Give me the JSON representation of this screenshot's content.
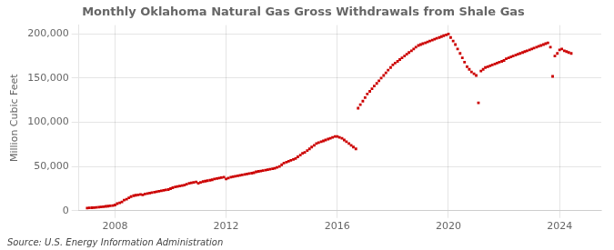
{
  "chart_data": {
    "type": "scatter",
    "title": "Monthly Oklahoma Natural Gas Gross Withdrawals from Shale Gas",
    "y_label": "Million Cubic Feet",
    "annotation": "Source: U.S. Energy Information Administration",
    "color": "#cc0000",
    "marker": "square",
    "grid": true,
    "xlim": [
      2006.7,
      2025.5
    ],
    "xticks": [
      2008,
      2012,
      2016,
      2020,
      2024
    ],
    "ylim": [
      0,
      210000
    ],
    "yticks": [
      0,
      {
        "value": 50000,
        "label": "50,000"
      },
      {
        "value": 100000,
        "label": "100,000"
      },
      {
        "value": 150000,
        "label": "150,000"
      },
      {
        "value": 200000,
        "label": "200,000"
      }
    ],
    "x": [
      2007.0,
      2007.08,
      2007.17,
      2007.25,
      2007.33,
      2007.42,
      2007.5,
      2007.58,
      2007.67,
      2007.75,
      2007.83,
      2007.92,
      2008.0,
      2008.08,
      2008.17,
      2008.25,
      2008.33,
      2008.42,
      2008.5,
      2008.58,
      2008.67,
      2008.75,
      2008.83,
      2008.92,
      2009.0,
      2009.08,
      2009.17,
      2009.25,
      2009.33,
      2009.42,
      2009.5,
      2009.58,
      2009.67,
      2009.75,
      2009.83,
      2009.92,
      2010.0,
      2010.08,
      2010.17,
      2010.25,
      2010.33,
      2010.42,
      2010.5,
      2010.58,
      2010.67,
      2010.75,
      2010.83,
      2010.92,
      2011.0,
      2011.08,
      2011.17,
      2011.25,
      2011.33,
      2011.42,
      2011.5,
      2011.58,
      2011.67,
      2011.75,
      2011.83,
      2011.92,
      2012.0,
      2012.08,
      2012.17,
      2012.25,
      2012.33,
      2012.42,
      2012.5,
      2012.58,
      2012.67,
      2012.75,
      2012.83,
      2012.92,
      2013.0,
      2013.08,
      2013.17,
      2013.25,
      2013.33,
      2013.42,
      2013.5,
      2013.58,
      2013.67,
      2013.75,
      2013.83,
      2013.92,
      2014.0,
      2014.08,
      2014.17,
      2014.25,
      2014.33,
      2014.42,
      2014.5,
      2014.58,
      2014.67,
      2014.75,
      2014.83,
      2014.92,
      2015.0,
      2015.08,
      2015.17,
      2015.25,
      2015.33,
      2015.42,
      2015.5,
      2015.58,
      2015.67,
      2015.75,
      2015.83,
      2015.92,
      2016.0,
      2016.08,
      2016.17,
      2016.25,
      2016.33,
      2016.42,
      2016.5,
      2016.58,
      2016.67,
      2016.75,
      2016.83,
      2016.92,
      2017.0,
      2017.08,
      2017.17,
      2017.25,
      2017.33,
      2017.42,
      2017.5,
      2017.58,
      2017.67,
      2017.75,
      2017.83,
      2017.92,
      2018.0,
      2018.08,
      2018.17,
      2018.25,
      2018.33,
      2018.42,
      2018.5,
      2018.58,
      2018.67,
      2018.75,
      2018.83,
      2018.92,
      2019.0,
      2019.08,
      2019.17,
      2019.25,
      2019.33,
      2019.42,
      2019.5,
      2019.58,
      2019.67,
      2019.75,
      2019.83,
      2019.92,
      2020.0,
      2020.08,
      2020.17,
      2020.25,
      2020.33,
      2020.42,
      2020.5,
      2020.58,
      2020.67,
      2020.75,
      2020.83,
      2020.92,
      2021.0,
      2021.08,
      2021.17,
      2021.25,
      2021.33,
      2021.42,
      2021.5,
      2021.58,
      2021.67,
      2021.75,
      2021.83,
      2021.92,
      2022.0,
      2022.08,
      2022.17,
      2022.25,
      2022.33,
      2022.42,
      2022.5,
      2022.58,
      2022.67,
      2022.75,
      2022.83,
      2022.92,
      2023.0,
      2023.08,
      2023.17,
      2023.25,
      2023.33,
      2023.42,
      2023.5,
      2023.58,
      2023.67,
      2023.75,
      2023.83,
      2023.92,
      2024.0,
      2024.08,
      2024.17,
      2024.25,
      2024.33,
      2024.42
    ],
    "values": [
      3000,
      3200,
      3400,
      3600,
      3800,
      4000,
      4300,
      4600,
      4900,
      5200,
      5500,
      5800,
      6500,
      8000,
      9000,
      10000,
      12000,
      13000,
      14500,
      16000,
      17000,
      17500,
      18000,
      18500,
      18000,
      19000,
      19500,
      20000,
      20500,
      21000,
      21500,
      22000,
      22500,
      23000,
      23500,
      24000,
      25000,
      26000,
      27000,
      27500,
      28000,
      28500,
      29000,
      30000,
      31000,
      31500,
      32000,
      32500,
      31000,
      32000,
      33000,
      33500,
      34000,
      34500,
      35000,
      36000,
      36500,
      37000,
      37500,
      38000,
      36000,
      37000,
      38000,
      38500,
      39000,
      39500,
      40000,
      40500,
      41000,
      41500,
      42000,
      42500,
      43000,
      44000,
      44500,
      45000,
      45500,
      46000,
      46500,
      47000,
      47500,
      48000,
      49000,
      50000,
      52000,
      54000,
      55000,
      56000,
      57000,
      58000,
      59000,
      61000,
      63000,
      65000,
      66000,
      68000,
      70000,
      72000,
      74000,
      76000,
      77000,
      78000,
      79000,
      80000,
      81000,
      82000,
      83000,
      84000,
      84000,
      83000,
      82000,
      80000,
      78000,
      76000,
      74000,
      72000,
      70000,
      116000,
      120000,
      124000,
      128000,
      132000,
      135000,
      138000,
      141000,
      144000,
      147000,
      150000,
      153000,
      156000,
      159000,
      162000,
      165000,
      167000,
      169000,
      171000,
      173000,
      175000,
      177000,
      179000,
      181000,
      183000,
      185000,
      187000,
      188000,
      189000,
      190000,
      191000,
      192000,
      193000,
      194000,
      195000,
      196000,
      197000,
      198000,
      199000,
      200000,
      196000,
      192000,
      188000,
      183000,
      178000,
      173000,
      168000,
      163000,
      160000,
      157000,
      155000,
      153000,
      122000,
      158000,
      160000,
      162000,
      163000,
      164000,
      165000,
      166000,
      167000,
      168000,
      169000,
      170000,
      172000,
      173000,
      174000,
      175000,
      176000,
      177000,
      178000,
      179000,
      180000,
      181000,
      182000,
      183000,
      184000,
      185000,
      186000,
      187000,
      188000,
      189000,
      190000,
      185000,
      152000,
      175000,
      178000,
      182000,
      183000,
      181000,
      180000,
      179000,
      178000
    ]
  }
}
